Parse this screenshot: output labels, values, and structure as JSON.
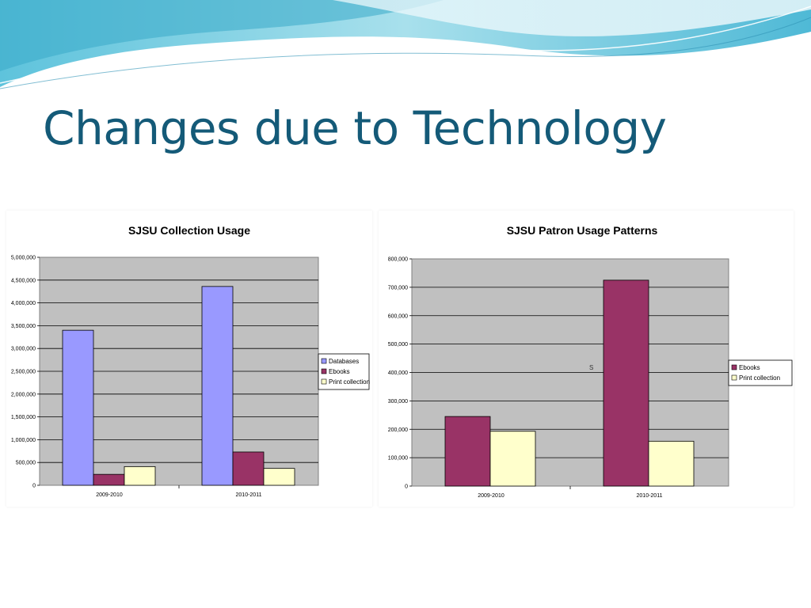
{
  "slide": {
    "title": "Changes due to Technology"
  },
  "colors": {
    "Databases": "#9999ff",
    "Ebooks": "#993366",
    "Print collection": "#ffffcc",
    "plot_area": "#c0c0c0",
    "title_text": "#145a78"
  },
  "chart_data": [
    {
      "type": "bar",
      "title": "SJSU Collection Usage",
      "xlabel": "",
      "ylabel": "",
      "categories": [
        "2009-2010",
        "2010-2011"
      ],
      "series": [
        {
          "name": "Databases",
          "values": [
            3400000,
            4360000
          ]
        },
        {
          "name": "Ebooks",
          "values": [
            240000,
            730000
          ]
        },
        {
          "name": "Print collection",
          "values": [
            410000,
            370000
          ]
        }
      ],
      "ylim": [
        0,
        5000000
      ],
      "yticks": [
        "0",
        "500,000",
        "1,000,000",
        "1,500,000",
        "2,000,000",
        "2,500,000",
        "3,000,000",
        "3,500,000",
        "4,000,000",
        "4,500,000",
        "5,000,000"
      ],
      "grid": true,
      "legend": "right"
    },
    {
      "type": "bar",
      "title": "SJSU Patron Usage Patterns",
      "xlabel": "",
      "ylabel": "",
      "categories": [
        "2009-2010",
        "2010-2011"
      ],
      "series": [
        {
          "name": "Ebooks",
          "values": [
            245000,
            725000
          ]
        },
        {
          "name": "Print collection",
          "values": [
            193000,
            158000
          ]
        }
      ],
      "ylim": [
        0,
        800000
      ],
      "yticks": [
        "0",
        "100,000",
        "200,000",
        "300,000",
        "400,000",
        "500,000",
        "600,000",
        "700,000",
        "800,000"
      ],
      "grid": true,
      "legend": "right",
      "annotation": "S"
    }
  ]
}
